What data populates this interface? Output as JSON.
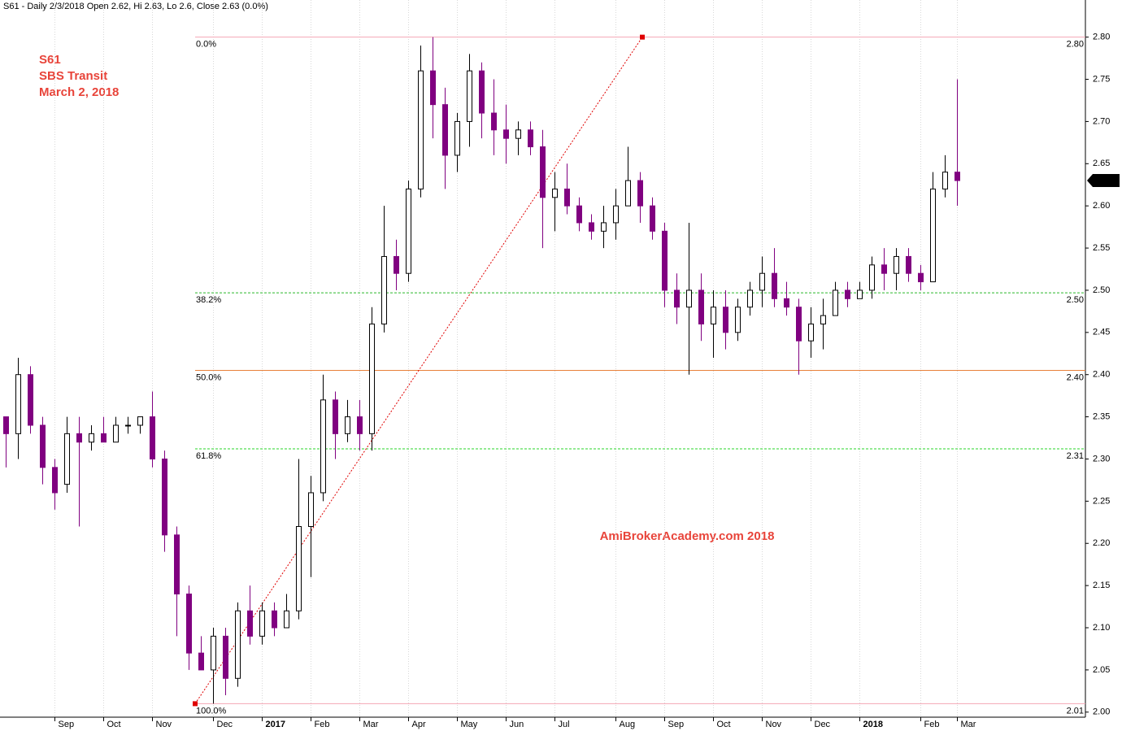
{
  "chart_data": {
    "type": "candlestick",
    "header": "S61 - Daily 2/3/2018 Open 2.62, Hi 2.63, Lo 2.6, Close 2.63 (0.0%)",
    "notes": [
      "S61",
      "SBS Transit",
      "March 2, 2018"
    ],
    "watermark": "AmiBrokerAcademy.com  2018",
    "categories": [
      null,
      null,
      null,
      null,
      "Sep",
      null,
      null,
      null,
      "Oct",
      null,
      null,
      null,
      "Nov",
      null,
      null,
      null,
      null,
      "Dec",
      null,
      null,
      null,
      "2017",
      null,
      null,
      null,
      "Feb",
      null,
      null,
      null,
      "Mar",
      null,
      null,
      null,
      "Apr",
      null,
      null,
      null,
      "May",
      null,
      null,
      null,
      "Jun",
      null,
      null,
      null,
      "Jul",
      null,
      null,
      null,
      null,
      "Aug",
      null,
      null,
      null,
      "Sep",
      null,
      null,
      null,
      "Oct",
      null,
      null,
      null,
      "Nov",
      null,
      null,
      null,
      "Dec",
      null,
      null,
      null,
      "2018",
      null,
      null,
      null,
      null,
      "Feb",
      null,
      null,
      "Mar"
    ],
    "open": [
      2.35,
      2.33,
      2.4,
      2.34,
      2.29,
      2.27,
      2.33,
      2.32,
      2.33,
      2.32,
      2.34,
      2.34,
      2.35,
      2.3,
      2.21,
      2.14,
      2.07,
      2.05,
      2.09,
      2.04,
      2.12,
      2.09,
      2.12,
      2.1,
      2.12,
      2.22,
      2.26,
      2.37,
      2.33,
      2.35,
      2.33,
      2.46,
      2.54,
      2.52,
      2.62,
      2.76,
      2.72,
      2.66,
      2.7,
      2.76,
      2.71,
      2.69,
      2.68,
      2.69,
      2.67,
      2.61,
      2.62,
      2.6,
      2.58,
      2.57,
      2.58,
      2.6,
      2.63,
      2.6,
      2.57,
      2.5,
      2.48,
      2.5,
      2.46,
      2.48,
      2.45,
      2.48,
      2.5,
      2.52,
      2.49,
      2.48,
      2.44,
      2.46,
      2.47,
      2.5,
      2.49,
      2.5,
      2.53,
      2.52,
      2.54,
      2.52,
      2.51,
      2.62,
      2.64
    ],
    "high": [
      2.35,
      2.42,
      2.41,
      2.35,
      2.3,
      2.35,
      2.35,
      2.34,
      2.35,
      2.35,
      2.35,
      2.35,
      2.38,
      2.31,
      2.22,
      2.15,
      2.09,
      2.1,
      2.1,
      2.13,
      2.15,
      2.13,
      2.13,
      2.14,
      2.3,
      2.28,
      2.4,
      2.38,
      2.37,
      2.37,
      2.48,
      2.6,
      2.56,
      2.63,
      2.79,
      2.8,
      2.74,
      2.71,
      2.78,
      2.77,
      2.75,
      2.72,
      2.7,
      2.7,
      2.69,
      2.64,
      2.65,
      2.61,
      2.59,
      2.6,
      2.62,
      2.67,
      2.64,
      2.61,
      2.58,
      2.52,
      2.58,
      2.52,
      2.5,
      2.5,
      2.49,
      2.51,
      2.54,
      2.55,
      2.51,
      2.49,
      2.48,
      2.49,
      2.51,
      2.51,
      2.51,
      2.54,
      2.55,
      2.55,
      2.55,
      2.53,
      2.64,
      2.66,
      2.75
    ],
    "low": [
      2.29,
      2.3,
      2.33,
      2.27,
      2.24,
      2.26,
      2.22,
      2.31,
      2.32,
      2.32,
      2.33,
      2.33,
      2.29,
      2.19,
      2.09,
      2.05,
      2.05,
      2.01,
      2.02,
      2.03,
      2.08,
      2.08,
      2.09,
      2.1,
      2.11,
      2.16,
      2.25,
      2.3,
      2.32,
      2.31,
      2.31,
      2.45,
      2.5,
      2.51,
      2.61,
      2.68,
      2.62,
      2.64,
      2.67,
      2.68,
      2.66,
      2.65,
      2.66,
      2.66,
      2.55,
      2.57,
      2.59,
      2.57,
      2.56,
      2.55,
      2.56,
      2.6,
      2.58,
      2.56,
      2.48,
      2.46,
      2.4,
      2.44,
      2.42,
      2.43,
      2.44,
      2.47,
      2.48,
      2.48,
      2.47,
      2.4,
      2.42,
      2.43,
      2.47,
      2.48,
      2.49,
      2.49,
      2.5,
      2.5,
      2.51,
      2.5,
      2.51,
      2.61,
      2.6
    ],
    "close": [
      2.33,
      2.4,
      2.34,
      2.29,
      2.26,
      2.33,
      2.32,
      2.33,
      2.32,
      2.34,
      2.34,
      2.35,
      2.3,
      2.21,
      2.14,
      2.07,
      2.05,
      2.09,
      2.04,
      2.12,
      2.09,
      2.12,
      2.1,
      2.12,
      2.22,
      2.26,
      2.37,
      2.33,
      2.35,
      2.33,
      2.46,
      2.54,
      2.52,
      2.62,
      2.76,
      2.72,
      2.66,
      2.7,
      2.76,
      2.71,
      2.69,
      2.68,
      2.69,
      2.67,
      2.61,
      2.62,
      2.6,
      2.58,
      2.57,
      2.58,
      2.6,
      2.63,
      2.6,
      2.57,
      2.5,
      2.48,
      2.5,
      2.46,
      2.48,
      2.45,
      2.48,
      2.5,
      2.52,
      2.49,
      2.48,
      2.44,
      2.46,
      2.47,
      2.5,
      2.49,
      2.5,
      2.53,
      2.52,
      2.54,
      2.52,
      2.51,
      2.62,
      2.64,
      2.63
    ],
    "up_color": "#000000",
    "down_color": "#800080",
    "ylim": [
      1.994,
      2.844
    ],
    "yticks": [
      {
        "value": 2.0,
        "label": "2.00"
      },
      2.05,
      {
        "value": 2.1,
        "label": "2.10"
      },
      2.15,
      {
        "value": 2.2,
        "label": "2.20"
      },
      2.25,
      {
        "value": 2.3,
        "label": "2.30"
      },
      2.35,
      {
        "value": 2.4,
        "label": "2.40"
      },
      2.45,
      {
        "value": 2.5,
        "label": "2.50"
      },
      2.55,
      {
        "value": 2.6,
        "label": "2.60"
      },
      2.65,
      {
        "value": 2.7,
        "label": "2.70"
      },
      2.75,
      {
        "value": 2.8,
        "label": "2.80"
      }
    ],
    "last": 2.63,
    "fib_levels": [
      {
        "label": "0.0%",
        "value": 2.8,
        "value_label": "2.80",
        "color": "#f4a6b4",
        "dashed": false
      },
      {
        "label": "38.2%",
        "value": 2.497,
        "value_label": "2.50",
        "color": "#2ab82a",
        "dashed": true
      },
      {
        "label": "50.0%",
        "value": 2.405,
        "value_label": "2.40",
        "color": "#e8803a",
        "dashed": false
      },
      {
        "label": "61.8%",
        "value": 2.312,
        "value_label": "2.31",
        "color": "#2ad42a",
        "dashed": true
      },
      {
        "label": "100.0%",
        "value": 2.01,
        "value_label": "2.01",
        "color": "#f4a6b4",
        "dashed": false
      }
    ],
    "trendline": {
      "from": 2.01,
      "to": 2.8,
      "color": "#e00000"
    }
  }
}
